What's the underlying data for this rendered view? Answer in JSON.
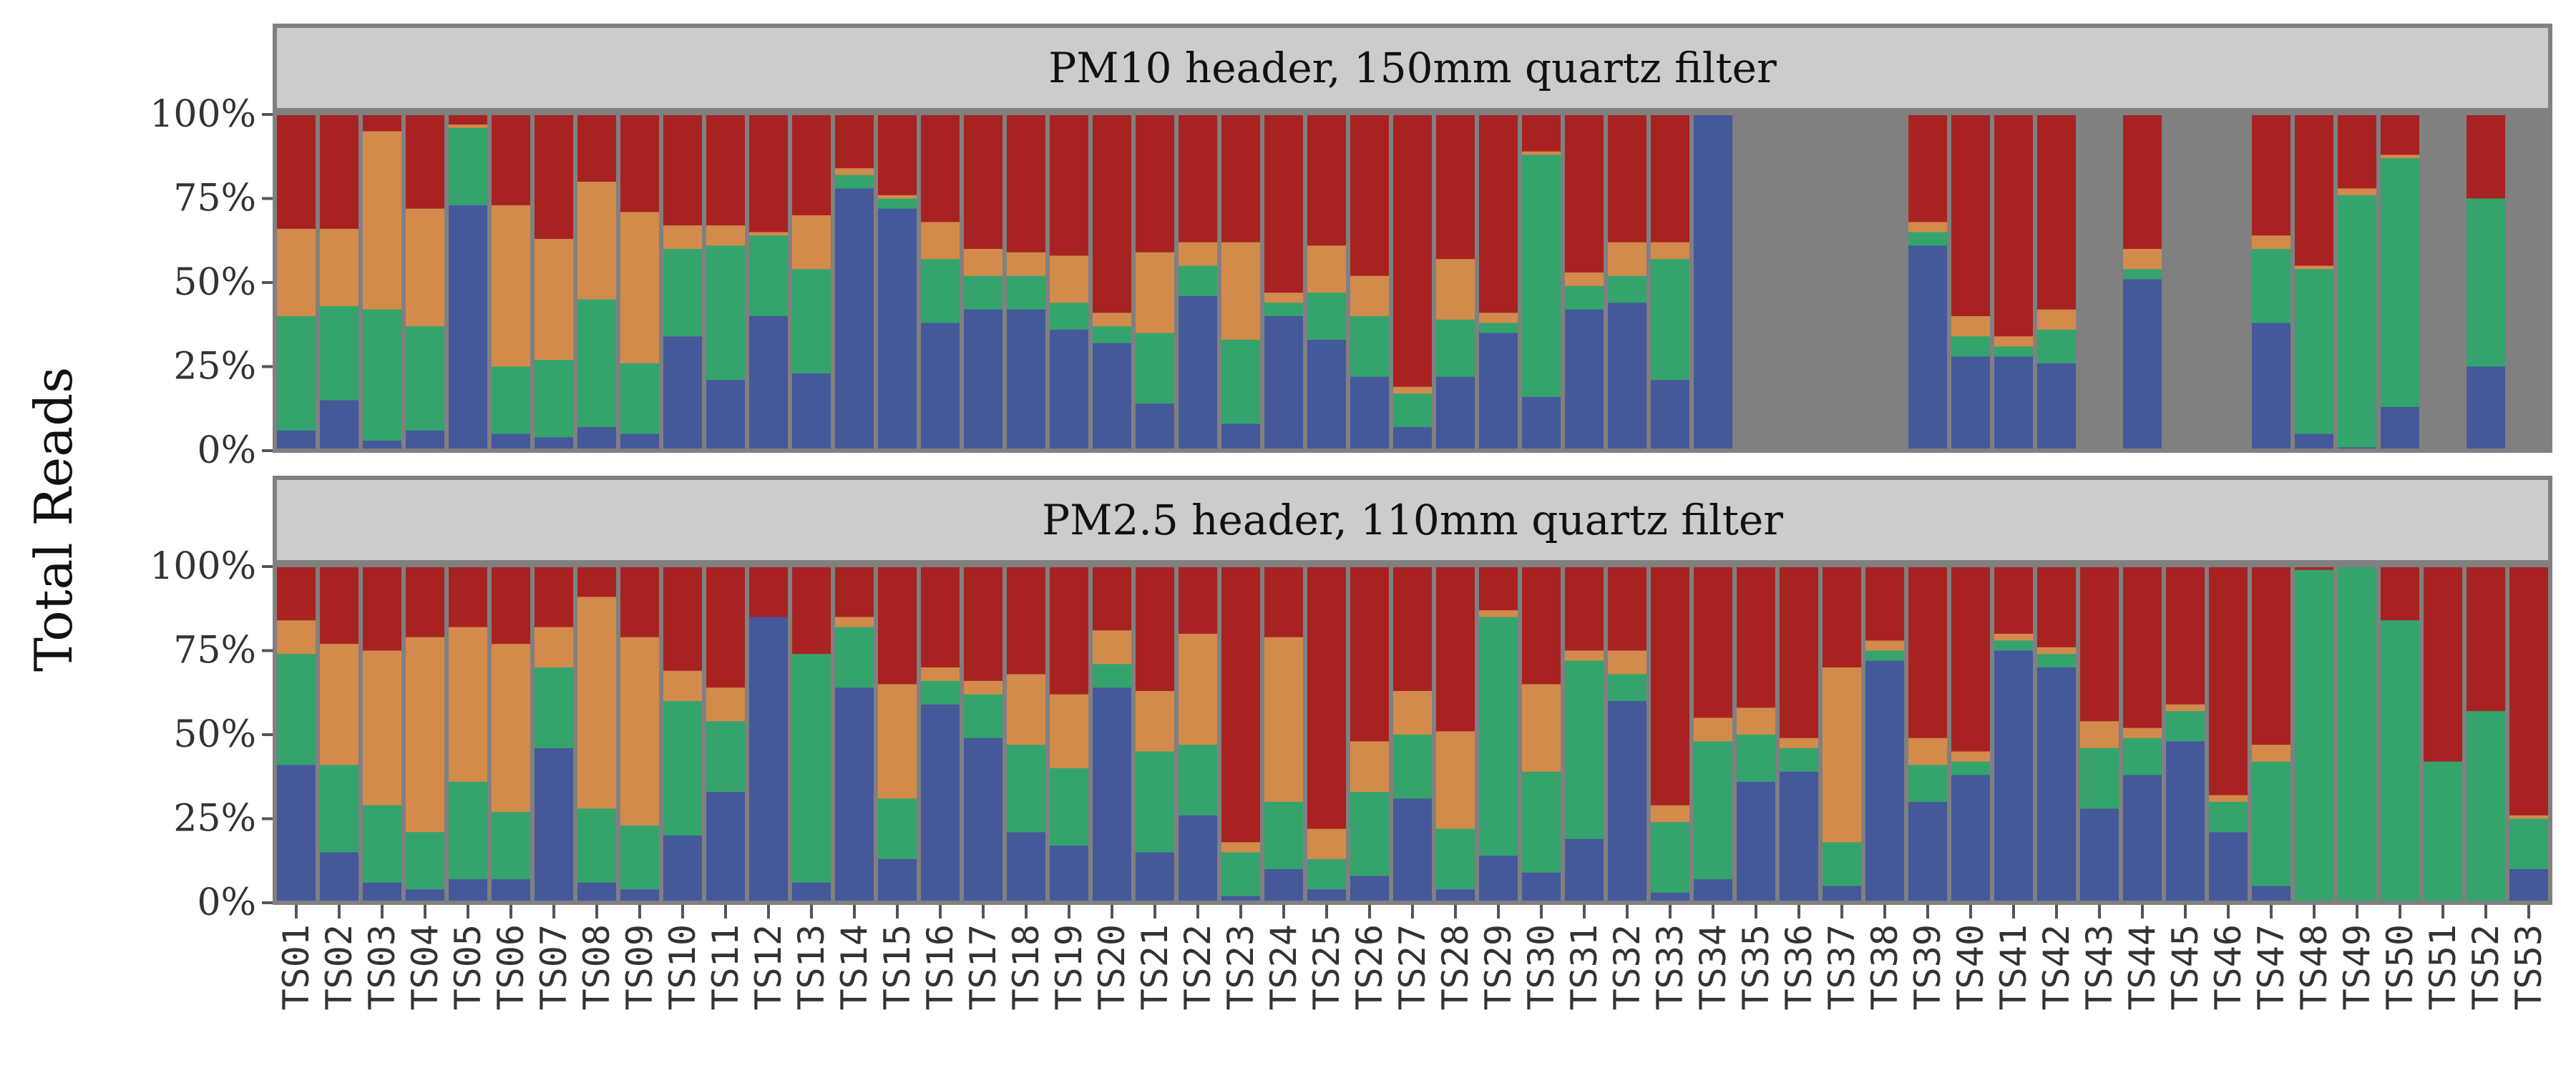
{
  "chart_data": {
    "type": "bar",
    "stacked": true,
    "ylabel": "Total Reads",
    "yticks": [
      "0%",
      "25%",
      "50%",
      "75%",
      "100%"
    ],
    "ylim": [
      0,
      100
    ],
    "series_colors": [
      "#44589a",
      "#34a46c",
      "#d38b4c",
      "#a82222"
    ],
    "panel_background": "#808080",
    "strip_background": "#cccccc",
    "categories": [
      "TS01",
      "TS02",
      "TS03",
      "TS04",
      "TS05",
      "TS06",
      "TS07",
      "TS08",
      "TS09",
      "TS10",
      "TS11",
      "TS12",
      "TS13",
      "TS14",
      "TS15",
      "TS16",
      "TS17",
      "TS18",
      "TS19",
      "TS20",
      "TS21",
      "TS22",
      "TS23",
      "TS24",
      "TS25",
      "TS26",
      "TS27",
      "TS28",
      "TS29",
      "TS30",
      "TS31",
      "TS32",
      "TS33",
      "TS34",
      "TS35",
      "TS36",
      "TS37",
      "TS38",
      "TS39",
      "TS40",
      "TS41",
      "TS42",
      "TS43",
      "TS44",
      "TS45",
      "TS46",
      "TS47",
      "TS48",
      "TS49",
      "TS50",
      "TS51",
      "TS52",
      "TS53"
    ],
    "panels": [
      {
        "title": "PM10 header, 150mm quartz filter",
        "stacks": [
          [
            6,
            34,
            26,
            34
          ],
          [
            15,
            28,
            23,
            34
          ],
          [
            3,
            39,
            53,
            5
          ],
          [
            6,
            31,
            35,
            28
          ],
          [
            73,
            23,
            1,
            3
          ],
          [
            5,
            20,
            48,
            27
          ],
          [
            4,
            23,
            36,
            37
          ],
          [
            7,
            38,
            35,
            20
          ],
          [
            5,
            21,
            45,
            29
          ],
          [
            34,
            26,
            7,
            33
          ],
          [
            21,
            40,
            6,
            33
          ],
          [
            40,
            24,
            1,
            35
          ],
          [
            23,
            31,
            16,
            30
          ],
          [
            78,
            4,
            2,
            16
          ],
          [
            72,
            3,
            1,
            24
          ],
          [
            38,
            19,
            11,
            32
          ],
          [
            42,
            10,
            8,
            40
          ],
          [
            42,
            10,
            7,
            41
          ],
          [
            36,
            8,
            14,
            42
          ],
          [
            32,
            5,
            4,
            59
          ],
          [
            14,
            21,
            24,
            41
          ],
          [
            46,
            9,
            7,
            38
          ],
          [
            8,
            25,
            29,
            38
          ],
          [
            40,
            4,
            3,
            53
          ],
          [
            33,
            14,
            14,
            39
          ],
          [
            22,
            18,
            12,
            48
          ],
          [
            7,
            10,
            2,
            81
          ],
          [
            22,
            17,
            18,
            43
          ],
          [
            35,
            3,
            3,
            59
          ],
          [
            16,
            72,
            1,
            11
          ],
          [
            42,
            7,
            4,
            47
          ],
          [
            44,
            8,
            10,
            38
          ],
          [
            21,
            36,
            5,
            38
          ],
          [
            100,
            0,
            0,
            0
          ],
          null,
          null,
          null,
          null,
          [
            61,
            4,
            3,
            32
          ],
          [
            28,
            6,
            6,
            60
          ],
          [
            28,
            3,
            3,
            66
          ],
          [
            26,
            10,
            6,
            58
          ],
          null,
          [
            51,
            3,
            6,
            40
          ],
          null,
          null,
          [
            38,
            22,
            4,
            36
          ],
          [
            5,
            49,
            1,
            45
          ],
          [
            1,
            75,
            2,
            22
          ],
          [
            13,
            74,
            1,
            12
          ],
          null,
          [
            25,
            50,
            0,
            25
          ],
          null
        ]
      },
      {
        "title": "PM2.5 header, 110mm quartz filter",
        "stacks": [
          [
            41,
            33,
            10,
            16
          ],
          [
            15,
            26,
            36,
            23
          ],
          [
            6,
            23,
            46,
            25
          ],
          [
            4,
            17,
            58,
            21
          ],
          [
            7,
            29,
            46,
            18
          ],
          [
            7,
            20,
            50,
            23
          ],
          [
            46,
            24,
            12,
            18
          ],
          [
            6,
            22,
            63,
            9
          ],
          [
            4,
            19,
            56,
            21
          ],
          [
            20,
            40,
            9,
            31
          ],
          [
            33,
            21,
            10,
            36
          ],
          [
            85,
            0,
            0,
            15
          ],
          [
            6,
            68,
            0,
            26
          ],
          [
            64,
            18,
            3,
            15
          ],
          [
            13,
            18,
            34,
            35
          ],
          [
            59,
            7,
            4,
            30
          ],
          [
            49,
            13,
            4,
            34
          ],
          [
            21,
            26,
            21,
            32
          ],
          [
            17,
            23,
            22,
            38
          ],
          [
            64,
            7,
            10,
            19
          ],
          [
            15,
            30,
            18,
            37
          ],
          [
            26,
            21,
            33,
            20
          ],
          [
            2,
            13,
            3,
            82
          ],
          [
            10,
            20,
            49,
            21
          ],
          [
            4,
            9,
            9,
            78
          ],
          [
            8,
            25,
            15,
            52
          ],
          [
            31,
            19,
            13,
            37
          ],
          [
            4,
            18,
            29,
            49
          ],
          [
            14,
            71,
            2,
            13
          ],
          [
            9,
            30,
            26,
            35
          ],
          [
            19,
            53,
            3,
            25
          ],
          [
            60,
            8,
            7,
            25
          ],
          [
            3,
            21,
            5,
            71
          ],
          [
            7,
            41,
            7,
            45
          ],
          [
            36,
            14,
            8,
            42
          ],
          [
            39,
            7,
            3,
            51
          ],
          [
            5,
            13,
            52,
            30
          ],
          [
            72,
            3,
            3,
            22
          ],
          [
            30,
            11,
            8,
            51
          ],
          [
            38,
            4,
            3,
            55
          ],
          [
            75,
            3,
            2,
            20
          ],
          [
            70,
            4,
            2,
            24
          ],
          [
            28,
            18,
            8,
            46
          ],
          [
            38,
            11,
            3,
            48
          ],
          [
            48,
            9,
            2,
            41
          ],
          [
            21,
            9,
            2,
            68
          ],
          [
            5,
            37,
            5,
            53
          ],
          [
            0,
            99,
            0,
            1
          ],
          [
            0,
            100,
            0,
            0
          ],
          [
            0,
            84,
            0,
            16
          ],
          [
            0,
            42,
            0,
            58
          ],
          [
            0,
            57,
            0,
            43
          ],
          [
            10,
            15,
            1,
            74
          ]
        ]
      }
    ]
  }
}
